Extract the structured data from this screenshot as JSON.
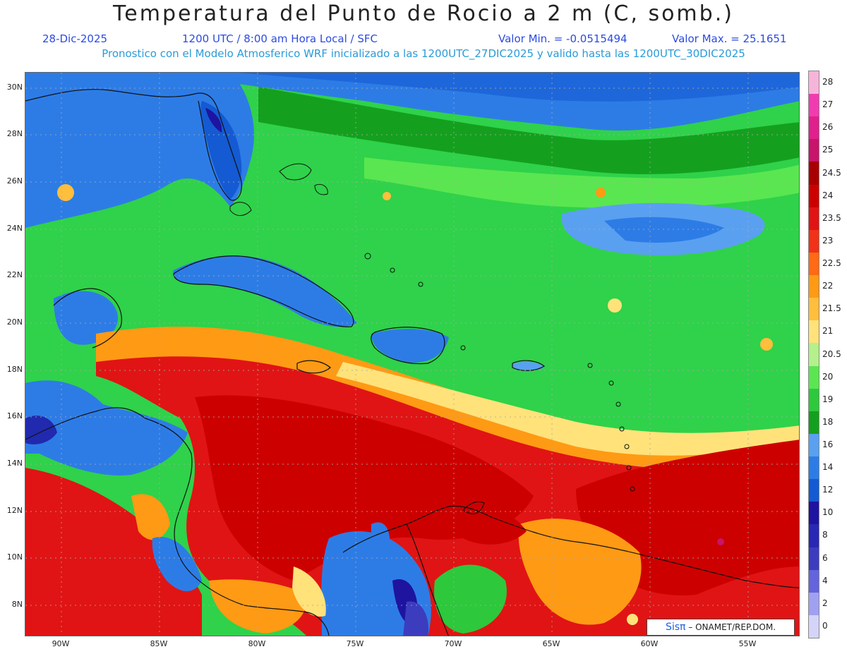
{
  "title": "Temperatura del Punto de Rocio a 2 m (C, somb.)",
  "header": {
    "date": "28-Dic-2025",
    "time": "1200 UTC / 8:00 am Hora Local / SFC",
    "min_label": "Valor Min. = -0.0515494",
    "max_label": "Valor Max. = 25.1651"
  },
  "subtitle": "Pronostico con el Modelo Atmosferico WRF inicializado a las 1200UTC_27DIC2025 y valido hasta las  1200UTC_30DIC2025",
  "lat_labels": [
    "30N",
    "28N",
    "26N",
    "24N",
    "22N",
    "20N",
    "18N",
    "16N",
    "14N",
    "12N",
    "10N",
    "8N"
  ],
  "lon_labels": [
    "90W",
    "85W",
    "80W",
    "75W",
    "70W",
    "65W",
    "60W",
    "55W"
  ],
  "legend": {
    "labels": [
      "28",
      "27",
      "26",
      "25",
      "24.5",
      "24",
      "23.5",
      "23",
      "22.5",
      "22",
      "21.5",
      "21",
      "20.5",
      "20",
      "19",
      "18",
      "16",
      "14",
      "12",
      "10",
      "8",
      "6",
      "4",
      "2",
      "0"
    ],
    "colors": [
      "#f7b4da",
      "#f03cb0",
      "#e0208c",
      "#c8146a",
      "#a80000",
      "#cd0000",
      "#e01414",
      "#f03218",
      "#ff6a14",
      "#ff9a14",
      "#ffbe3c",
      "#ffe27a",
      "#b4f08c",
      "#5ae650",
      "#2dc83c",
      "#14a01e",
      "#5aa0f0",
      "#2d7ce6",
      "#145ad2",
      "#1e14a0",
      "#2828b4",
      "#3c3cbe",
      "#6464dc",
      "#a0a0f0",
      "#d4d4f8"
    ]
  },
  "credit": {
    "logo": "Sisπ",
    "text": "– ONAMET/REP.DOM."
  }
}
